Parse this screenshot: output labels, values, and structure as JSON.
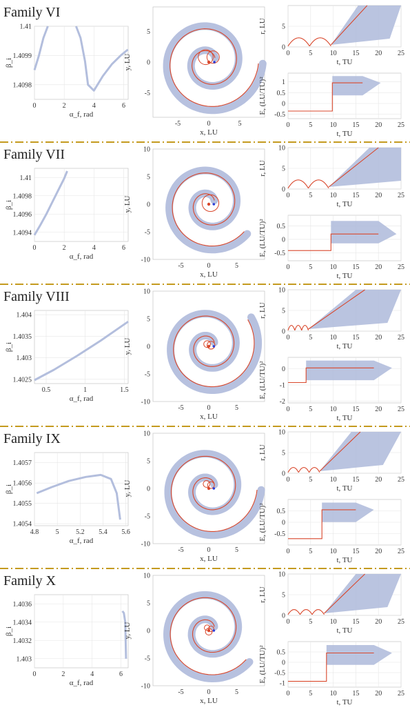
{
  "colors": {
    "band": "#b3bedd",
    "line": "#d9472b",
    "separator": "#c49a1e",
    "axis": "#555555",
    "grid": "#e6e6e6"
  },
  "families": [
    {
      "title": "Family VI",
      "beta": {
        "xlabel": "α_f, rad",
        "ylabel": "β_i",
        "xticks": [
          "0",
          "2",
          "4",
          "6"
        ],
        "yticks": [
          "1.4098",
          "1.4099",
          "1.41"
        ],
        "xlim": [
          0,
          6.3
        ],
        "ylim": [
          1.40975,
          1.41
        ],
        "curves": [
          {
            "x": [
              0,
              0.3,
              0.6,
              0.9
            ],
            "y": [
              1.40985,
              1.4099,
              1.40996,
              1.41
            ]
          },
          {
            "x": [
              2.8,
              3.1,
              3.4,
              3.6,
              4.0,
              4.6,
              5.2,
              5.8,
              6.28
            ],
            "y": [
              1.41,
              1.40996,
              1.40988,
              1.4098,
              1.40978,
              1.40983,
              1.40987,
              1.4099,
              1.40992
            ]
          }
        ]
      },
      "traj": {
        "xlabel": "x, LU",
        "ylabel": "y, LU",
        "xticks": [
          "-5",
          "0",
          "5"
        ],
        "yticks": [
          "-5",
          "0",
          "5"
        ],
        "lim": [
          -9,
          9
        ],
        "outer": 8.7,
        "turns": 1.9,
        "loops": [
          [
            -0.5,
            0.8,
            1.2
          ],
          [
            0.7,
            0.8,
            1.0
          ]
        ]
      },
      "r": {
        "xlabel": "t, TU",
        "ylabel": "r, LU",
        "xticks": [
          "0",
          "5",
          "10",
          "15",
          "20",
          "25"
        ],
        "yticks": [
          "0",
          "5"
        ],
        "ylim": [
          0,
          10
        ],
        "tmin": 9.5,
        "tmax": 17.5
      },
      "E": {
        "xlabel": "t, TU",
        "ylabel": "E, (LU/TU)²",
        "xticks": [
          "0",
          "5",
          "10",
          "15",
          "20",
          "25"
        ],
        "yticks": [
          "-0.5",
          "0",
          "0.5",
          "1"
        ],
        "ylim": [
          -0.7,
          1.4
        ],
        "low": -0.35,
        "high": 0.95,
        "tjump": 9.8,
        "tend": 16.5
      }
    },
    {
      "title": "Family VII",
      "beta": {
        "xlabel": "α_f, rad",
        "ylabel": "β_i",
        "xticks": [
          "0",
          "2",
          "4",
          "6"
        ],
        "yticks": [
          "1.4094",
          "1.4096",
          "1.4098",
          "1.41"
        ],
        "xlim": [
          0,
          6.3
        ],
        "ylim": [
          1.4093,
          1.4101
        ],
        "curves": [
          {
            "x": [
              0,
              0.4,
              0.8,
              1.2,
              1.6,
              2.0,
              2.2
            ],
            "y": [
              1.40937,
              1.40948,
              1.4096,
              1.40973,
              1.40986,
              1.40999,
              1.41007
            ]
          }
        ]
      },
      "traj": {
        "xlabel": "x, LU",
        "ylabel": "y, LU",
        "xticks": [
          "-5",
          "0",
          "5"
        ],
        "yticks": [
          "-10",
          "-5",
          "0",
          "5",
          "10"
        ],
        "lim": [
          -10,
          10
        ],
        "outer": 8.7,
        "turns": 1.8,
        "loops": [
          [
            0.3,
            0.2,
            1.5
          ]
        ]
      },
      "r": {
        "xlabel": "t, TU",
        "ylabel": "r, LU",
        "xticks": [
          "0",
          "5",
          "10",
          "15",
          "20",
          "25"
        ],
        "yticks": [
          "0",
          "5",
          "10"
        ],
        "ylim": [
          0,
          10
        ],
        "tmin": 9,
        "tmax": 20
      },
      "E": {
        "xlabel": "t, TU",
        "ylabel": "E, (LU/TU)²",
        "xticks": [
          "0",
          "5",
          "10",
          "15",
          "20",
          "25"
        ],
        "yticks": [
          "-0.5",
          "0",
          "0.5"
        ],
        "ylim": [
          -0.8,
          0.9
        ],
        "low": -0.42,
        "high": 0.2,
        "tjump": 9.5,
        "tend": 20
      }
    },
    {
      "title": "Family VIII",
      "beta": {
        "xlabel": "α_f, rad",
        "ylabel": "β_i",
        "xticks": [
          "0.5",
          "1",
          "1.5"
        ],
        "yticks": [
          "1.4025",
          "1.403",
          "1.4035",
          "1.404"
        ],
        "xlim": [
          0.35,
          1.55
        ],
        "ylim": [
          1.4024,
          1.4041
        ],
        "curves": [
          {
            "x": [
              0.35,
              0.6,
              0.9,
              1.2,
              1.55
            ],
            "y": [
              1.40248,
              1.40272,
              1.40305,
              1.4034,
              1.40384
            ]
          }
        ]
      },
      "traj": {
        "xlabel": "x, LU",
        "ylabel": "y, LU",
        "xticks": [
          "-5",
          "0",
          "5"
        ],
        "yticks": [
          "-10",
          "-5",
          "0",
          "5",
          "10"
        ],
        "lim": [
          -10,
          10
        ],
        "outer": 9.2,
        "turns": 2.0,
        "loops": [
          [
            -0.3,
            0.4,
            0.6
          ],
          [
            0.4,
            0.2,
            0.7
          ]
        ]
      },
      "r": {
        "xlabel": "t, TU",
        "ylabel": "r, LU",
        "xticks": [
          "0",
          "5",
          "10",
          "15",
          "20",
          "25"
        ],
        "yticks": [
          "0",
          "5",
          "10"
        ],
        "ylim": [
          0,
          10
        ],
        "tmin": 4.5,
        "tmax": 17
      },
      "E": {
        "xlabel": "t, TU",
        "ylabel": "E, (LU/TU)²",
        "xticks": [
          "0",
          "5",
          "10",
          "15",
          "20",
          "25"
        ],
        "yticks": [
          "-2",
          "-1",
          "0"
        ],
        "ylim": [
          -2.1,
          0.7
        ],
        "low": -0.85,
        "high": 0.05,
        "tjump": 4.0,
        "tend": 19
      }
    },
    {
      "title": "Family IX",
      "beta": {
        "xlabel": "α_f, rad",
        "ylabel": "β_i",
        "xticks": [
          "4.8",
          "5",
          "5.2",
          "5.4",
          "5.6"
        ],
        "yticks": [
          "1.4054",
          "1.4055",
          "1.4056",
          "1.4057"
        ],
        "xlim": [
          4.8,
          5.62
        ],
        "ylim": [
          1.40539,
          1.40575
        ],
        "curves": [
          {
            "x": [
              4.82,
              4.95,
              5.1,
              5.25,
              5.38,
              5.47,
              5.52,
              5.55
            ],
            "y": [
              1.40555,
              1.40558,
              1.40561,
              1.40563,
              1.40564,
              1.40562,
              1.40555,
              1.40542
            ]
          }
        ]
      },
      "traj": {
        "xlabel": "x, LU",
        "ylabel": "y, LU",
        "xticks": [
          "-5",
          "0",
          "5"
        ],
        "yticks": [
          "-10",
          "-5",
          "0",
          "5",
          "10"
        ],
        "lim": [
          -10,
          10
        ],
        "outer": 9.4,
        "turns": 1.9,
        "loops": [
          [
            -0.4,
            0.8,
            0.6
          ],
          [
            0.4,
            0.6,
            0.6
          ]
        ]
      },
      "r": {
        "xlabel": "t, TU",
        "ylabel": "r, LU",
        "xticks": [
          "0",
          "5",
          "10",
          "15",
          "20",
          "25"
        ],
        "yticks": [
          "0",
          "5",
          "10"
        ],
        "ylim": [
          0,
          10
        ],
        "tmin": 7,
        "tmax": 16
      },
      "E": {
        "xlabel": "t, TU",
        "ylabel": "E, (LU/TU)²",
        "xticks": [
          "0",
          "5",
          "10",
          "15",
          "20",
          "25"
        ],
        "yticks": [
          "-0.5",
          "0",
          "0.5"
        ],
        "ylim": [
          -1.0,
          1.0
        ],
        "low": -0.72,
        "high": 0.55,
        "tjump": 7.5,
        "tend": 15
      }
    },
    {
      "title": "Family X",
      "beta": {
        "xlabel": "α_f, rad",
        "ylabel": "β_i",
        "xticks": [
          "0",
          "2",
          "4",
          "6"
        ],
        "yticks": [
          "1.403",
          "1.4032",
          "1.4034",
          "1.4036"
        ],
        "xlim": [
          0,
          6.5
        ],
        "ylim": [
          1.4029,
          1.4037
        ],
        "curves": [
          {
            "x": [
              6.1,
              6.2,
              6.3,
              6.35
            ],
            "y": [
              1.40352,
              1.4035,
              1.4034,
              1.403
            ]
          }
        ]
      },
      "traj": {
        "xlabel": "x, LU",
        "ylabel": "y, LU",
        "xticks": [
          "-5",
          "0",
          "5"
        ],
        "yticks": [
          "-10",
          "-5",
          "0",
          "5",
          "10"
        ],
        "lim": [
          -10,
          10
        ],
        "outer": 9.2,
        "turns": 1.8,
        "loops": [
          [
            -0.3,
            0.5,
            0.5
          ],
          [
            0.4,
            0.3,
            0.5
          ],
          [
            0,
            -0.2,
            0.6
          ]
        ]
      },
      "r": {
        "xlabel": "t, TU",
        "ylabel": "r, LU",
        "xticks": [
          "0",
          "5",
          "10",
          "15",
          "20",
          "25"
        ],
        "yticks": [
          "0",
          "5",
          "10"
        ],
        "ylim": [
          0,
          10
        ],
        "tmin": 8,
        "tmax": 17
      },
      "E": {
        "xlabel": "t, TU",
        "ylabel": "E, (LU/TU)²",
        "xticks": [
          "0",
          "5",
          "10",
          "15",
          "20",
          "25"
        ],
        "yticks": [
          "-1",
          "-0.5",
          "0",
          "0.5"
        ],
        "ylim": [
          -1.2,
          1.0
        ],
        "low": -0.92,
        "high": 0.45,
        "tjump": 8.5,
        "tend": 19
      }
    }
  ],
  "chart_data": [
    {
      "type": "line",
      "title": "Family VI",
      "xlabel": "α_f, rad",
      "ylabel": "β_i",
      "xlim": [
        0,
        6.3
      ],
      "ylim": [
        1.40975,
        1.41
      ]
    },
    {
      "type": "line",
      "title": "Family VII",
      "xlabel": "α_f, rad",
      "ylabel": "β_i",
      "xlim": [
        0,
        6.3
      ],
      "ylim": [
        1.4093,
        1.4101
      ]
    },
    {
      "type": "line",
      "title": "Family VIII",
      "xlabel": "α_f, rad",
      "ylabel": "β_i",
      "xlim": [
        0.35,
        1.55
      ],
      "ylim": [
        1.4024,
        1.4041
      ]
    },
    {
      "type": "line",
      "title": "Family IX",
      "xlabel": "α_f, rad",
      "ylabel": "β_i",
      "xlim": [
        4.8,
        5.62
      ],
      "ylim": [
        1.40539,
        1.40575
      ]
    },
    {
      "type": "line",
      "title": "Family X",
      "xlabel": "α_f, rad",
      "ylabel": "β_i",
      "xlim": [
        0,
        6.5
      ],
      "ylim": [
        1.4029,
        1.4037
      ]
    }
  ]
}
